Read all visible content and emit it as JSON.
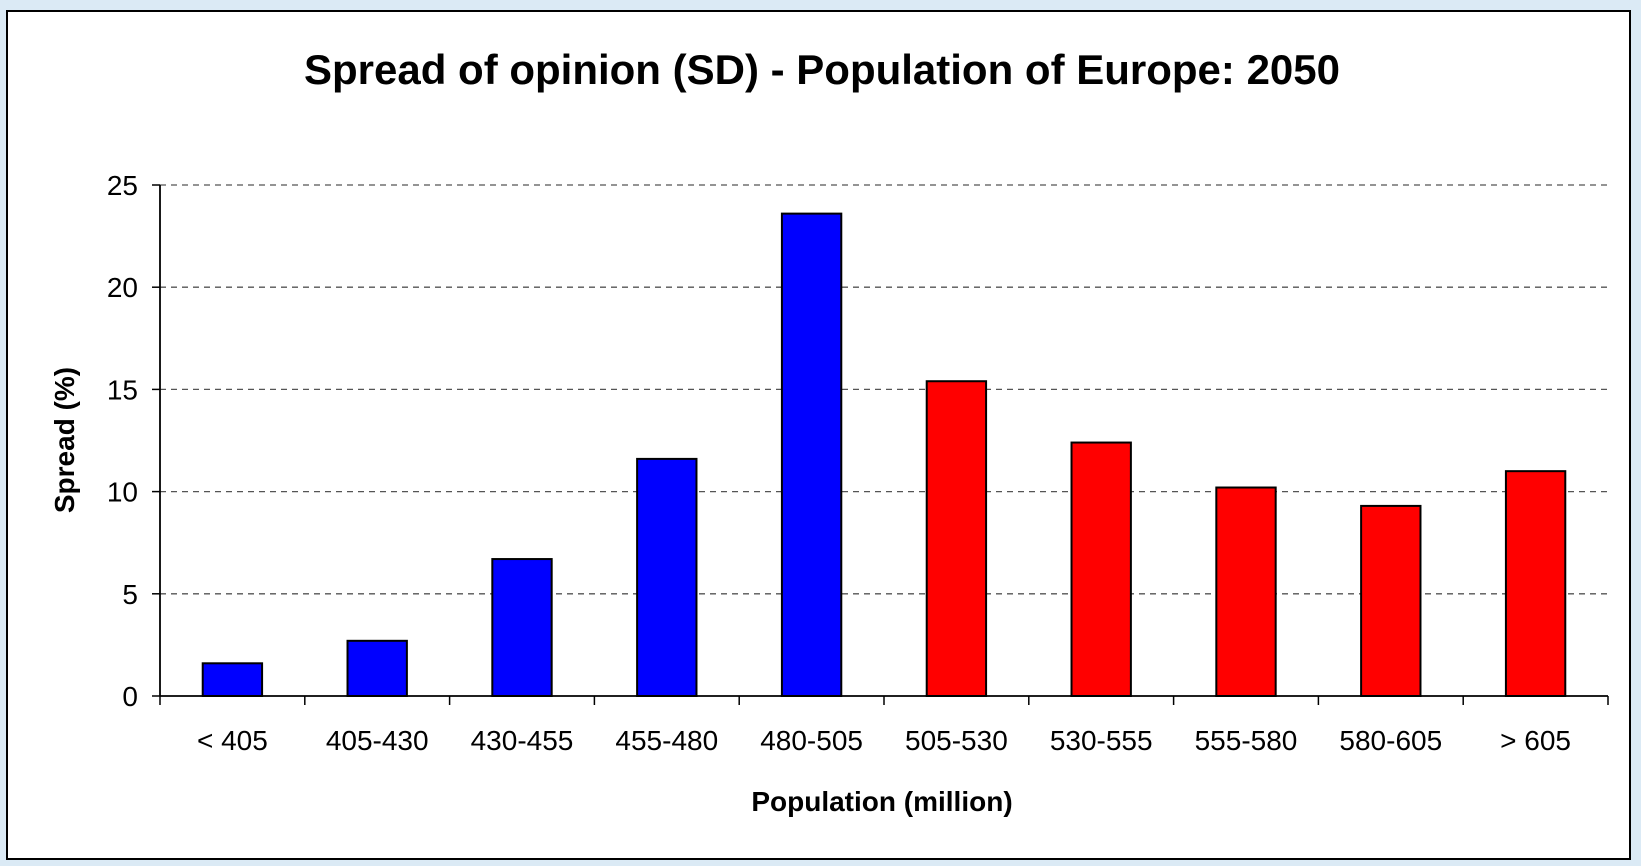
{
  "chart_data": {
    "type": "bar",
    "title": "Spread of opinion (SD) - Population of Europe: 2050",
    "xlabel": "Population (million)",
    "ylabel": "Spread (%)",
    "ylim": [
      0,
      25
    ],
    "yticks": [
      "0",
      "5",
      "10",
      "15",
      "20",
      "25"
    ],
    "grid": true,
    "categories": [
      "< 405",
      "405-430",
      "430-455",
      "455-480",
      "480-505",
      "505-530",
      "530-555",
      "555-580",
      "580-605",
      "> 605"
    ],
    "values": [
      1.6,
      2.7,
      6.7,
      11.6,
      23.6,
      15.4,
      12.4,
      10.2,
      9.3,
      11.0
    ],
    "bar_colors": [
      "#0000ff",
      "#0000ff",
      "#0000ff",
      "#0000ff",
      "#0000ff",
      "#ff0000",
      "#ff0000",
      "#ff0000",
      "#ff0000",
      "#ff0000"
    ]
  }
}
